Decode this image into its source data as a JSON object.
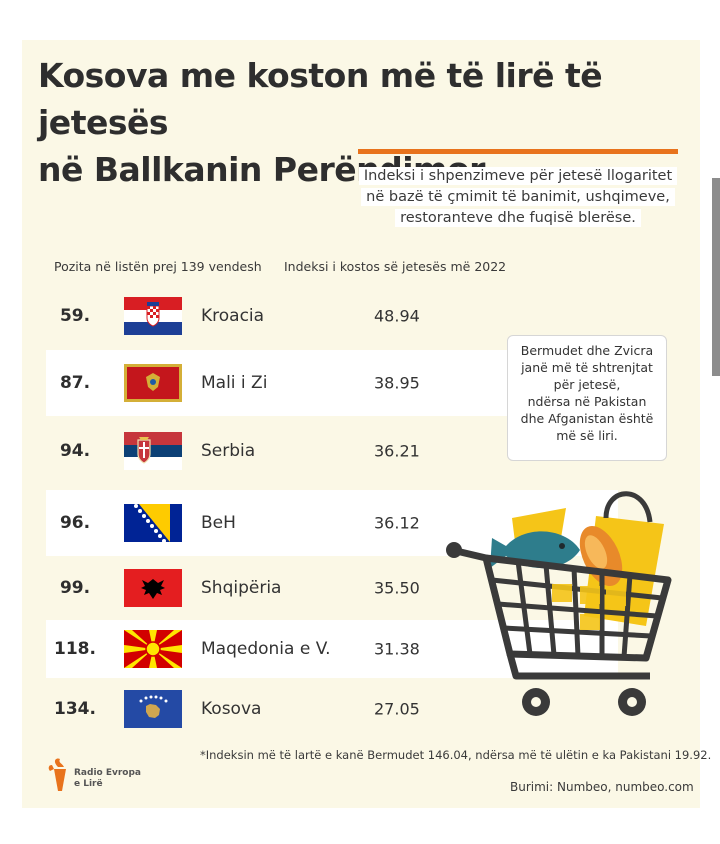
{
  "title_line1": "Kosova me koston më të lirë të jetesës",
  "title_line2": "në Ballkanin Perëndimor",
  "subtitle_line1": "Indeksi i shpenzimeve për jetesë llogaritet",
  "subtitle_line2": "në bazë të çmimit të banimit, ushqimeve,",
  "subtitle_line3": "restoranteve dhe fuqisë blerëse.",
  "col_rank_header": "Pozita në listën prej 139 vendesh",
  "col_value_header": "Indeksi i kostos së jetesës më 2022",
  "note_lines": [
    "Bermudet dhe Zvicra",
    "janë më të shtrenjtat",
    "për jetesë,",
    "ndërsa në Pakistan",
    "dhe Afganistan është",
    "më së liri."
  ],
  "footnote": "*Indeksin më të lartë e kanë Bermudet 146.04, ndërsa më të ulëtin e ka Pakistani 19.92.",
  "source": "Burimi: Numbeo, numbeo.com",
  "logo_line1": "Radio Evropa",
  "logo_line2": "e Lirë",
  "colors": {
    "accent": "#e8731c",
    "background": "#fbf8e6",
    "row_alt": "#ffffff"
  },
  "chart_data": {
    "type": "table",
    "columns": [
      "Pozita në listën prej 139 vendesh",
      "",
      "Indeksi i kostos së jetesës më 2022"
    ],
    "rows": [
      {
        "rank": "59.",
        "country": "Kroacia",
        "value": "48.94",
        "flag": "croatia"
      },
      {
        "rank": "87.",
        "country": "Mali i Zi",
        "value": "38.95",
        "flag": "montenegro"
      },
      {
        "rank": "94.",
        "country": "Serbia",
        "value": "36.21",
        "flag": "serbia"
      },
      {
        "rank": "96.",
        "country": "BeH",
        "value": "36.12",
        "flag": "bosnia"
      },
      {
        "rank": "99.",
        "country": "Shqipëria",
        "value": "35.50",
        "flag": "albania"
      },
      {
        "rank": "118.",
        "country": "Maqedonia e V.",
        "value": "31.38",
        "flag": "north-macedonia"
      },
      {
        "rank": "134.",
        "country": "Kosova",
        "value": "27.05",
        "flag": "kosovo"
      }
    ]
  }
}
